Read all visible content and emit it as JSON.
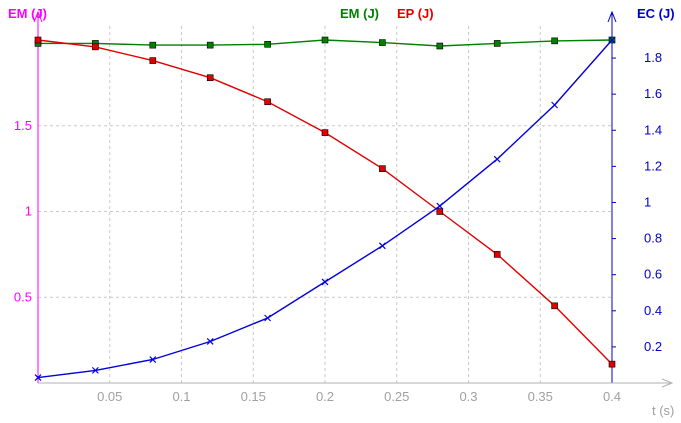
{
  "chart_data": {
    "type": "line",
    "x_axis": {
      "label": "t (s)",
      "range": [
        0,
        0.4
      ],
      "ticks": [
        0.05,
        0.1,
        0.15,
        0.2,
        0.25,
        0.3,
        0.35,
        0.4
      ],
      "tick_labels": [
        "0.05",
        "0.1",
        "0.15",
        "0.2",
        "0.25",
        "0.3",
        "0.35",
        "0.4"
      ]
    },
    "y_left": {
      "label": "EM (J)",
      "range": [
        0,
        2
      ],
      "ticks": [
        0.5,
        1,
        1.5
      ],
      "tick_labels": [
        "0.5",
        "1",
        "1.5"
      ],
      "color": "#ff00ff"
    },
    "y_right": {
      "label": "EC (J)",
      "range": [
        0,
        1.9
      ],
      "ticks": [
        0.2,
        0.4,
        0.6,
        0.8,
        1,
        1.2,
        1.4,
        1.6,
        1.8
      ],
      "tick_labels": [
        "0.2",
        "0.4",
        "0.6",
        "0.8",
        "1",
        "1.2",
        "1.4",
        "1.6",
        "1.8"
      ],
      "color": "#0000cc"
    },
    "grid": true,
    "legend": {
      "position": "top-center",
      "entries": [
        {
          "label": "EM (J)",
          "color": "#008000"
        },
        {
          "label": "EP (J)",
          "color": "#e00000"
        }
      ]
    },
    "series": [
      {
        "name": "EM (J)",
        "axis": "left",
        "color": "#008000",
        "marker": "square",
        "x": [
          0,
          0.04,
          0.08,
          0.12,
          0.16,
          0.2,
          0.24,
          0.28,
          0.32,
          0.36,
          0.4
        ],
        "y": [
          1.98,
          1.98,
          1.97,
          1.97,
          1.975,
          2.0,
          1.985,
          1.965,
          1.98,
          1.995,
          2.0
        ]
      },
      {
        "name": "EP (J)",
        "axis": "left",
        "color": "#e00000",
        "marker": "square",
        "x": [
          0,
          0.04,
          0.08,
          0.12,
          0.16,
          0.2,
          0.24,
          0.28,
          0.32,
          0.36,
          0.4
        ],
        "y": [
          2.0,
          1.96,
          1.88,
          1.78,
          1.64,
          1.46,
          1.25,
          1.0,
          0.75,
          0.45,
          0.11
        ]
      },
      {
        "name": "EC (J)",
        "axis": "right",
        "color": "#0000dd",
        "marker": "x",
        "x": [
          0,
          0.04,
          0.08,
          0.12,
          0.16,
          0.2,
          0.24,
          0.28,
          0.32,
          0.36,
          0.4
        ],
        "y": [
          0.03,
          0.07,
          0.13,
          0.23,
          0.36,
          0.56,
          0.76,
          0.98,
          1.24,
          1.54,
          1.9
        ]
      }
    ]
  }
}
